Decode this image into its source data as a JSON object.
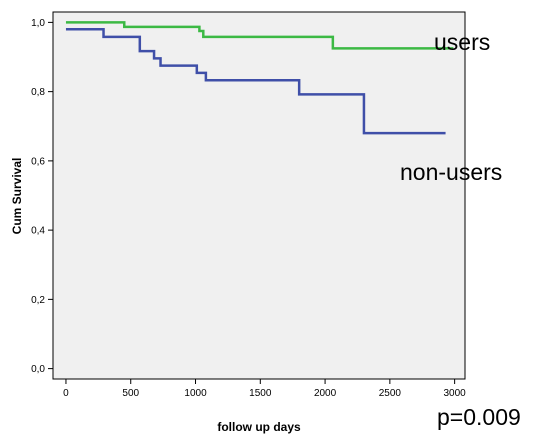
{
  "chart_data": {
    "type": "line",
    "title": "",
    "xlabel": "follow up days",
    "ylabel": "Cum Survival",
    "xlim": [
      -100,
      3080
    ],
    "ylim": [
      -0.03,
      1.03
    ],
    "x_ticks": [
      0,
      500,
      1000,
      1500,
      2000,
      2500,
      3000
    ],
    "x_tick_labels": [
      "0",
      "500",
      "1000",
      "1500",
      "2000",
      "2500",
      "3000"
    ],
    "y_ticks": [
      0.0,
      0.2,
      0.4,
      0.6,
      0.8,
      1.0
    ],
    "y_tick_labels": [
      "0,0",
      "0,2",
      "0,4",
      "0,6",
      "0,8",
      "1,0"
    ],
    "grid": false,
    "step": true,
    "series": [
      {
        "name": "users",
        "color": "#3cb944",
        "x": [
          0,
          450,
          1030,
          1060,
          2060,
          2990
        ],
        "y": [
          1.0,
          0.987,
          0.975,
          0.958,
          0.925,
          0.925
        ]
      },
      {
        "name": "non-users",
        "color": "#3f4fa8",
        "x": [
          0,
          290,
          570,
          680,
          730,
          1010,
          1080,
          1800,
          2300,
          2930
        ],
        "y": [
          0.98,
          0.958,
          0.917,
          0.896,
          0.875,
          0.854,
          0.833,
          0.792,
          0.68,
          0.68
        ]
      }
    ],
    "annotations": [
      {
        "text": "p=0.009"
      }
    ]
  }
}
